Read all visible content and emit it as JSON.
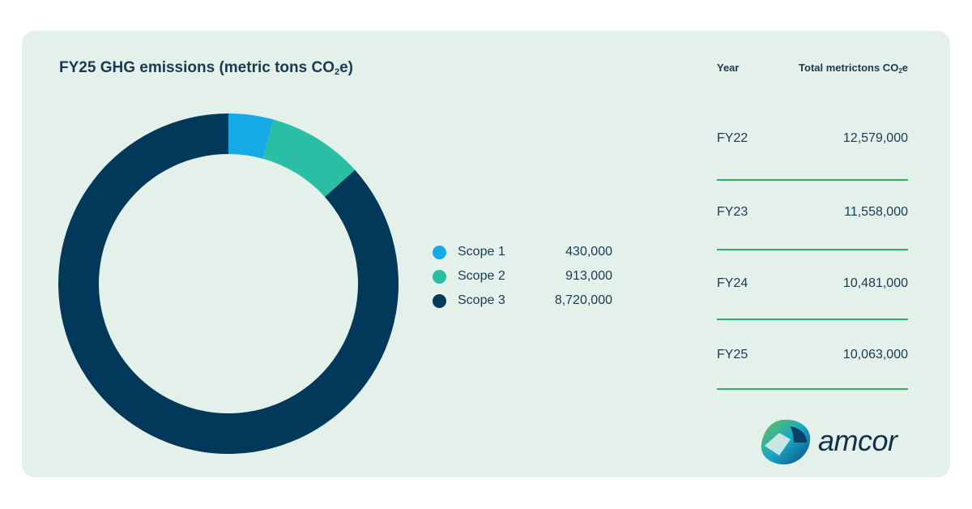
{
  "chart_data": [
    {
      "type": "pie",
      "title": "FY25 GHG emissions (metric tons CO₂e)",
      "title_parts": [
        "FY25 GHG emissions (metric tons CO",
        "2",
        "e)"
      ],
      "series": [
        {
          "name": "Scope 1",
          "value": 430000,
          "label": "430,000",
          "color": "#15a9e6"
        },
        {
          "name": "Scope 2",
          "value": 913000,
          "label": "913,000",
          "color": "#2abfa4"
        },
        {
          "name": "Scope 3",
          "value": 8720000,
          "label": "8,720,000",
          "color": "#02385a"
        }
      ]
    },
    {
      "type": "table",
      "columns": [
        "Year",
        "Total metrictons CO₂e"
      ],
      "column_total_parts": [
        "Total metrictons CO",
        "2",
        "e"
      ],
      "rows": [
        {
          "year": "FY22",
          "total": "12,579,000"
        },
        {
          "year": "FY23",
          "total": "11,558,000"
        },
        {
          "year": "FY24",
          "total": "10,481,000"
        },
        {
          "year": "FY25",
          "total": "10,063,000"
        }
      ]
    }
  ],
  "brand": {
    "name": "amcor"
  },
  "colors": {
    "panel": "#e3f1ea",
    "text": "#1a3a52",
    "rule": "#2ab068"
  }
}
